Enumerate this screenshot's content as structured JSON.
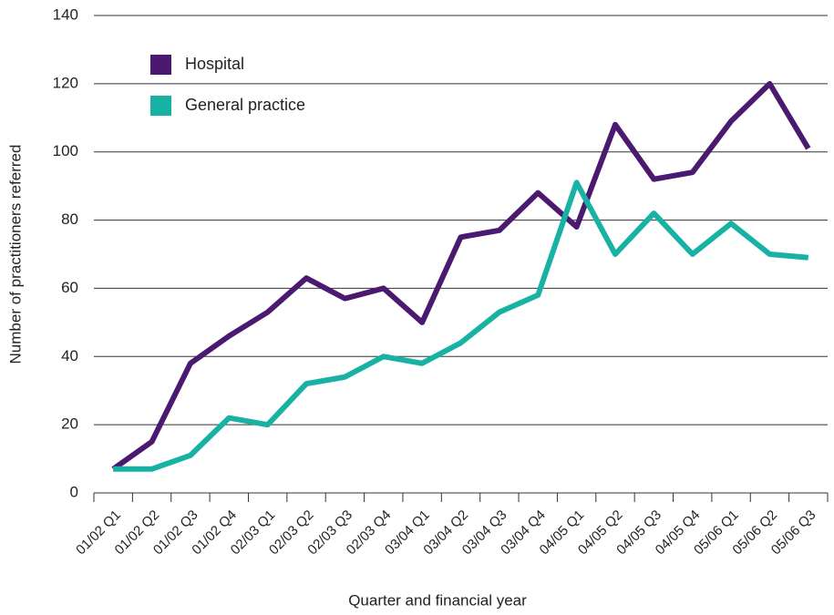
{
  "chart_data": {
    "type": "line",
    "xlabel": "Quarter and financial year",
    "ylabel": "Number of practitioners referred",
    "categories": [
      "01/02 Q1",
      "01/02 Q2",
      "01/02 Q3",
      "01/02 Q4",
      "02/03 Q1",
      "02/03 Q2",
      "02/03 Q3",
      "02/03 Q4",
      "03/04 Q1",
      "03/04 Q2",
      "03/04 Q3",
      "03/04 Q4",
      "04/05 Q1",
      "04/05 Q2",
      "04/05 Q3",
      "04/05 Q4",
      "05/06 Q1",
      "05/06 Q2",
      "05/06 Q3"
    ],
    "series": [
      {
        "name": "Hospital",
        "color": "#4b1a70",
        "values": [
          7,
          15,
          38,
          46,
          53,
          63,
          57,
          60,
          50,
          75,
          77,
          88,
          78,
          108,
          92,
          94,
          109,
          120,
          101
        ]
      },
      {
        "name": "General practice",
        "color": "#18b2a5",
        "values": [
          7,
          7,
          11,
          22,
          20,
          32,
          34,
          40,
          38,
          44,
          53,
          58,
          91,
          70,
          82,
          70,
          79,
          70,
          69
        ]
      }
    ],
    "ylim": [
      0,
      140
    ],
    "yticks": [
      0,
      20,
      40,
      60,
      80,
      100,
      120,
      140
    ],
    "grid": true,
    "legend": "upper-left"
  }
}
